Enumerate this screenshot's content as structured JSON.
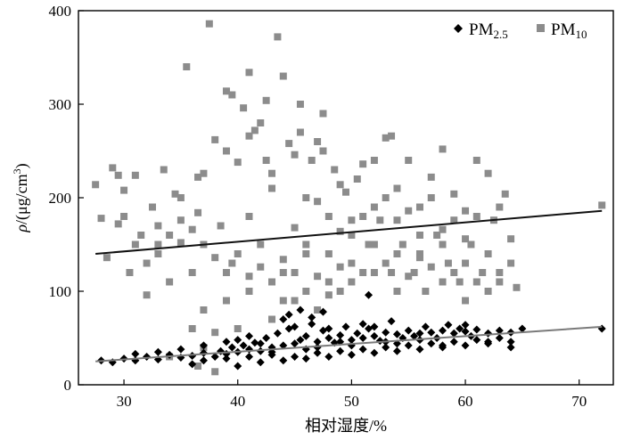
{
  "chart_data": {
    "type": "scatter",
    "xlabel": "相对湿度/%",
    "ylabel_prefix": "ρ",
    "ylabel_unit": "/(μg/cm",
    "ylabel_sup": "3",
    "ylabel_close": ")",
    "xlim": [
      26,
      73
    ],
    "ylim": [
      0,
      400
    ],
    "xticks": [
      "30",
      "40",
      "50",
      "60",
      "70"
    ],
    "yticks": [
      "0",
      "100",
      "200",
      "300",
      "400"
    ],
    "grid": false,
    "legend_position": "top-right",
    "series": [
      {
        "name": "PM2.5",
        "name_main": "PM",
        "name_sub": "2.5",
        "marker": "diamond",
        "color": "#000000",
        "trend": [
          [
            27.5,
            25
          ],
          [
            72,
            62
          ]
        ],
        "points": [
          [
            28,
            26
          ],
          [
            29,
            24
          ],
          [
            30,
            28
          ],
          [
            31,
            26
          ],
          [
            32,
            30
          ],
          [
            33,
            27
          ],
          [
            34,
            32
          ],
          [
            35,
            29
          ],
          [
            36,
            31
          ],
          [
            37,
            34
          ],
          [
            38,
            30
          ],
          [
            38.5,
            36
          ],
          [
            39,
            33
          ],
          [
            39.5,
            40
          ],
          [
            40,
            35
          ],
          [
            40.5,
            42
          ],
          [
            41,
            38
          ],
          [
            41.5,
            45
          ],
          [
            42,
            36
          ],
          [
            42.5,
            50
          ],
          [
            43,
            40
          ],
          [
            43.5,
            55
          ],
          [
            44,
            42
          ],
          [
            44.5,
            60
          ],
          [
            45,
            44
          ],
          [
            45.5,
            48
          ],
          [
            46,
            52
          ],
          [
            46.5,
            65
          ],
          [
            47,
            46
          ],
          [
            47.5,
            58
          ],
          [
            48,
            50
          ],
          [
            48.5,
            45
          ],
          [
            49,
            53
          ],
          [
            49.5,
            62
          ],
          [
            50,
            48
          ],
          [
            50.5,
            55
          ],
          [
            51,
            50
          ],
          [
            51.5,
            60
          ],
          [
            52,
            52
          ],
          [
            52.5,
            47
          ],
          [
            53,
            56
          ],
          [
            53.5,
            68
          ],
          [
            54,
            54
          ],
          [
            54.5,
            50
          ],
          [
            55,
            58
          ],
          [
            55.5,
            52
          ],
          [
            56,
            55
          ],
          [
            56.5,
            62
          ],
          [
            57,
            56
          ],
          [
            57.5,
            50
          ],
          [
            58,
            58
          ],
          [
            58.5,
            64
          ],
          [
            59,
            55
          ],
          [
            59.5,
            60
          ],
          [
            60,
            57
          ],
          [
            60.5,
            52
          ],
          [
            61,
            59
          ],
          [
            62,
            55
          ],
          [
            63,
            58
          ],
          [
            64,
            56
          ],
          [
            65,
            60
          ],
          [
            72,
            60
          ],
          [
            36,
            22
          ],
          [
            37,
            26
          ],
          [
            39,
            28
          ],
          [
            41,
            30
          ],
          [
            43,
            32
          ],
          [
            45,
            30
          ],
          [
            47,
            34
          ],
          [
            49,
            36
          ],
          [
            51,
            38
          ],
          [
            53,
            40
          ],
          [
            55,
            42
          ],
          [
            57,
            44
          ],
          [
            59,
            46
          ],
          [
            61,
            48
          ],
          [
            63,
            50
          ],
          [
            40,
            48
          ],
          [
            42,
            44
          ],
          [
            44,
            70
          ],
          [
            46,
            38
          ],
          [
            48,
            60
          ],
          [
            50,
            42
          ],
          [
            52,
            62
          ],
          [
            54,
            44
          ],
          [
            56,
            48
          ],
          [
            58,
            42
          ],
          [
            60,
            64
          ],
          [
            62,
            46
          ],
          [
            64,
            40
          ],
          [
            35,
            38
          ],
          [
            37,
            42
          ],
          [
            39,
            46
          ],
          [
            41,
            52
          ],
          [
            43,
            35
          ],
          [
            45,
            62
          ],
          [
            47,
            40
          ],
          [
            49,
            46
          ],
          [
            51,
            65
          ],
          [
            53,
            46
          ],
          [
            44.5,
            75
          ],
          [
            45.5,
            80
          ],
          [
            46.5,
            72
          ],
          [
            47.5,
            78
          ],
          [
            51.5,
            96
          ],
          [
            40,
            20
          ],
          [
            42,
            24
          ],
          [
            44,
            26
          ],
          [
            46,
            28
          ],
          [
            48,
            30
          ],
          [
            50,
            32
          ],
          [
            52,
            34
          ],
          [
            54,
            36
          ],
          [
            56,
            38
          ],
          [
            58,
            40
          ],
          [
            60,
            42
          ],
          [
            62,
            44
          ],
          [
            64,
            46
          ],
          [
            33,
            35
          ],
          [
            31,
            33
          ]
        ]
      },
      {
        "name": "PM10",
        "name_main": "PM",
        "name_sub": "10",
        "marker": "square",
        "color": "#8c8c8c",
        "trend": [
          [
            27.5,
            140
          ],
          [
            72,
            186
          ]
        ],
        "points": [
          [
            27.5,
            214
          ],
          [
            28,
            178
          ],
          [
            28.5,
            136
          ],
          [
            29,
            232
          ],
          [
            29.5,
            172
          ],
          [
            30,
            208
          ],
          [
            30.5,
            120
          ],
          [
            31,
            224
          ],
          [
            31.5,
            160
          ],
          [
            32,
            96
          ],
          [
            32.5,
            190
          ],
          [
            33,
            140
          ],
          [
            33.5,
            230
          ],
          [
            34,
            110
          ],
          [
            34.5,
            204
          ],
          [
            35,
            152
          ],
          [
            35.5,
            340
          ],
          [
            36,
            120
          ],
          [
            36.5,
            184
          ],
          [
            37,
            80
          ],
          [
            37.5,
            386
          ],
          [
            38,
            262
          ],
          [
            38.5,
            170
          ],
          [
            39,
            314
          ],
          [
            39.5,
            130
          ],
          [
            40,
            238
          ],
          [
            40.5,
            296
          ],
          [
            41,
            180
          ],
          [
            41.5,
            272
          ],
          [
            42,
            150
          ],
          [
            42.5,
            304
          ],
          [
            43,
            210
          ],
          [
            43.5,
            372
          ],
          [
            44,
            120
          ],
          [
            44.5,
            258
          ],
          [
            45,
            168
          ],
          [
            45.5,
            300
          ],
          [
            46,
            140
          ],
          [
            46.5,
            240
          ],
          [
            47,
            196
          ],
          [
            47.5,
            290
          ],
          [
            48,
            110
          ],
          [
            48.5,
            230
          ],
          [
            49,
            164
          ],
          [
            49.5,
            206
          ],
          [
            50,
            130
          ],
          [
            50.5,
            220
          ],
          [
            51,
            180
          ],
          [
            51.5,
            150
          ],
          [
            52,
            240
          ],
          [
            52.5,
            176
          ],
          [
            53,
            264
          ],
          [
            53.5,
            120
          ],
          [
            54,
            210
          ],
          [
            54.5,
            150
          ],
          [
            55,
            240
          ],
          [
            55.5,
            120
          ],
          [
            56,
            190
          ],
          [
            56.5,
            100
          ],
          [
            57,
            222
          ],
          [
            57.5,
            160
          ],
          [
            58,
            252
          ],
          [
            58.5,
            130
          ],
          [
            59,
            204
          ],
          [
            59.5,
            110
          ],
          [
            60,
            186
          ],
          [
            60.5,
            150
          ],
          [
            61,
            240
          ],
          [
            61.5,
            120
          ],
          [
            62,
            226
          ],
          [
            62.5,
            176
          ],
          [
            63,
            110
          ],
          [
            63.5,
            204
          ],
          [
            64,
            156
          ],
          [
            64.5,
            104
          ],
          [
            72,
            192
          ],
          [
            36,
            60
          ],
          [
            37,
            40
          ],
          [
            38,
            56
          ],
          [
            39,
            90
          ],
          [
            40,
            60
          ],
          [
            41,
            100
          ],
          [
            43,
            70
          ],
          [
            45,
            90
          ],
          [
            47,
            80
          ],
          [
            49,
            100
          ],
          [
            34,
            30
          ],
          [
            36.5,
            20
          ],
          [
            38,
            14
          ],
          [
            33,
            170
          ],
          [
            35,
            200
          ],
          [
            37,
            226
          ],
          [
            39,
            250
          ],
          [
            41,
            266
          ],
          [
            43,
            226
          ],
          [
            45,
            246
          ],
          [
            47,
            260
          ],
          [
            49,
            214
          ],
          [
            51,
            236
          ],
          [
            53,
            200
          ],
          [
            55,
            186
          ],
          [
            57,
            200
          ],
          [
            59,
            176
          ],
          [
            61,
            180
          ],
          [
            63,
            190
          ],
          [
            40,
            140
          ],
          [
            42,
            126
          ],
          [
            44,
            134
          ],
          [
            46,
            150
          ],
          [
            48,
            140
          ],
          [
            50,
            160
          ],
          [
            52,
            150
          ],
          [
            54,
            140
          ],
          [
            56,
            136
          ],
          [
            58,
            150
          ],
          [
            60,
            130
          ],
          [
            62,
            140
          ],
          [
            64,
            130
          ],
          [
            42,
            280
          ],
          [
            44,
            330
          ],
          [
            46,
            200
          ],
          [
            48,
            180
          ],
          [
            50,
            176
          ],
          [
            52,
            190
          ],
          [
            54,
            176
          ],
          [
            56,
            160
          ],
          [
            58,
            166
          ],
          [
            60,
            156
          ],
          [
            44,
            90
          ],
          [
            46,
            100
          ],
          [
            48,
            96
          ],
          [
            50,
            110
          ],
          [
            52,
            120
          ],
          [
            54,
            100
          ],
          [
            56,
            140
          ],
          [
            58,
            110
          ],
          [
            60,
            90
          ],
          [
            62,
            100
          ],
          [
            30,
            180
          ],
          [
            31,
            150
          ],
          [
            32,
            130
          ],
          [
            33,
            150
          ],
          [
            34,
            160
          ],
          [
            35,
            176
          ],
          [
            36,
            166
          ],
          [
            37,
            150
          ],
          [
            38,
            136
          ],
          [
            39,
            120
          ],
          [
            41,
            116
          ],
          [
            43,
            110
          ],
          [
            45,
            120
          ],
          [
            47,
            116
          ],
          [
            49,
            126
          ],
          [
            51,
            120
          ],
          [
            53,
            130
          ],
          [
            55,
            116
          ],
          [
            57,
            126
          ],
          [
            59,
            120
          ],
          [
            61,
            110
          ],
          [
            63,
            120
          ],
          [
            53.5,
            266
          ],
          [
            41,
            334
          ],
          [
            39.5,
            310
          ],
          [
            45.5,
            270
          ],
          [
            47.5,
            250
          ],
          [
            42.5,
            240
          ],
          [
            36.5,
            222
          ],
          [
            29.5,
            224
          ]
        ]
      }
    ]
  }
}
